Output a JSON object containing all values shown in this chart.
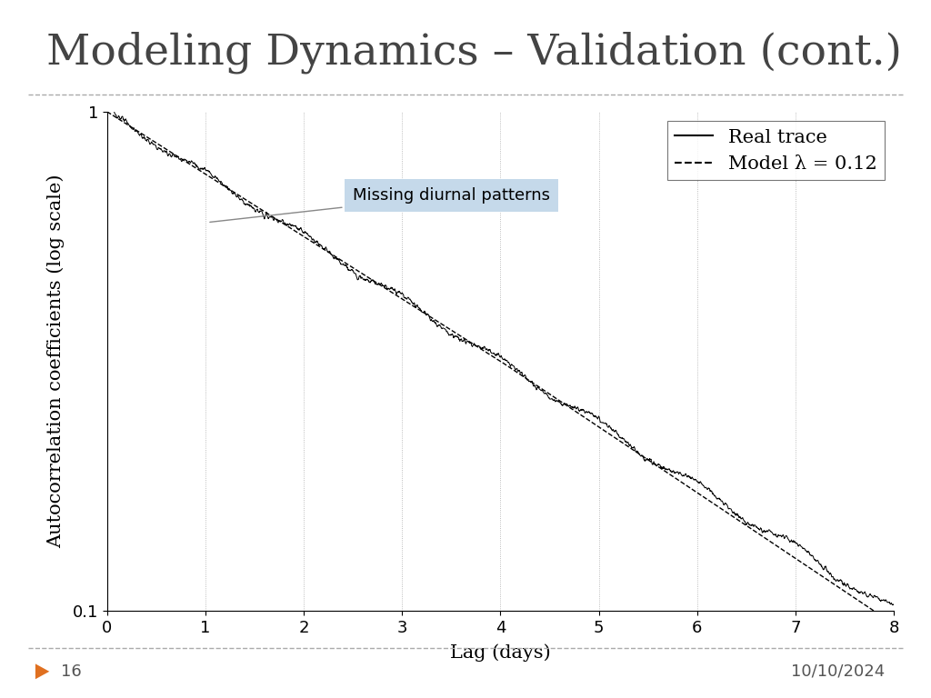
{
  "title": "Modeling Dynamics – Validation (cont.)",
  "xlabel": "Lag (days)",
  "ylabel": "Autocorrelation coefficients (log scale)",
  "xlim": [
    0,
    8
  ],
  "ylim_log": [
    0.1,
    1.0
  ],
  "xticks": [
    0,
    1,
    2,
    3,
    4,
    5,
    6,
    7,
    8
  ],
  "yticks_major": [
    0.1,
    1.0
  ],
  "ytick_labels": [
    "0.1",
    "1"
  ],
  "lambda": 0.12,
  "annotation_text": "Missing diurnal patterns",
  "annotation_box_color": "#c5d9ea",
  "legend_real": "Real trace",
  "legend_model": "Model λ = 0.12",
  "slide_number": "16",
  "slide_date": "10/10/2024",
  "title_fontsize": 34,
  "axis_label_fontsize": 15,
  "tick_fontsize": 13,
  "legend_fontsize": 15,
  "background_color": "#ffffff",
  "line_color": "#000000",
  "grid_color": "#aaaaaa",
  "title_color": "#444444",
  "footer_color": "#555555",
  "triangle_color": "#e07020"
}
